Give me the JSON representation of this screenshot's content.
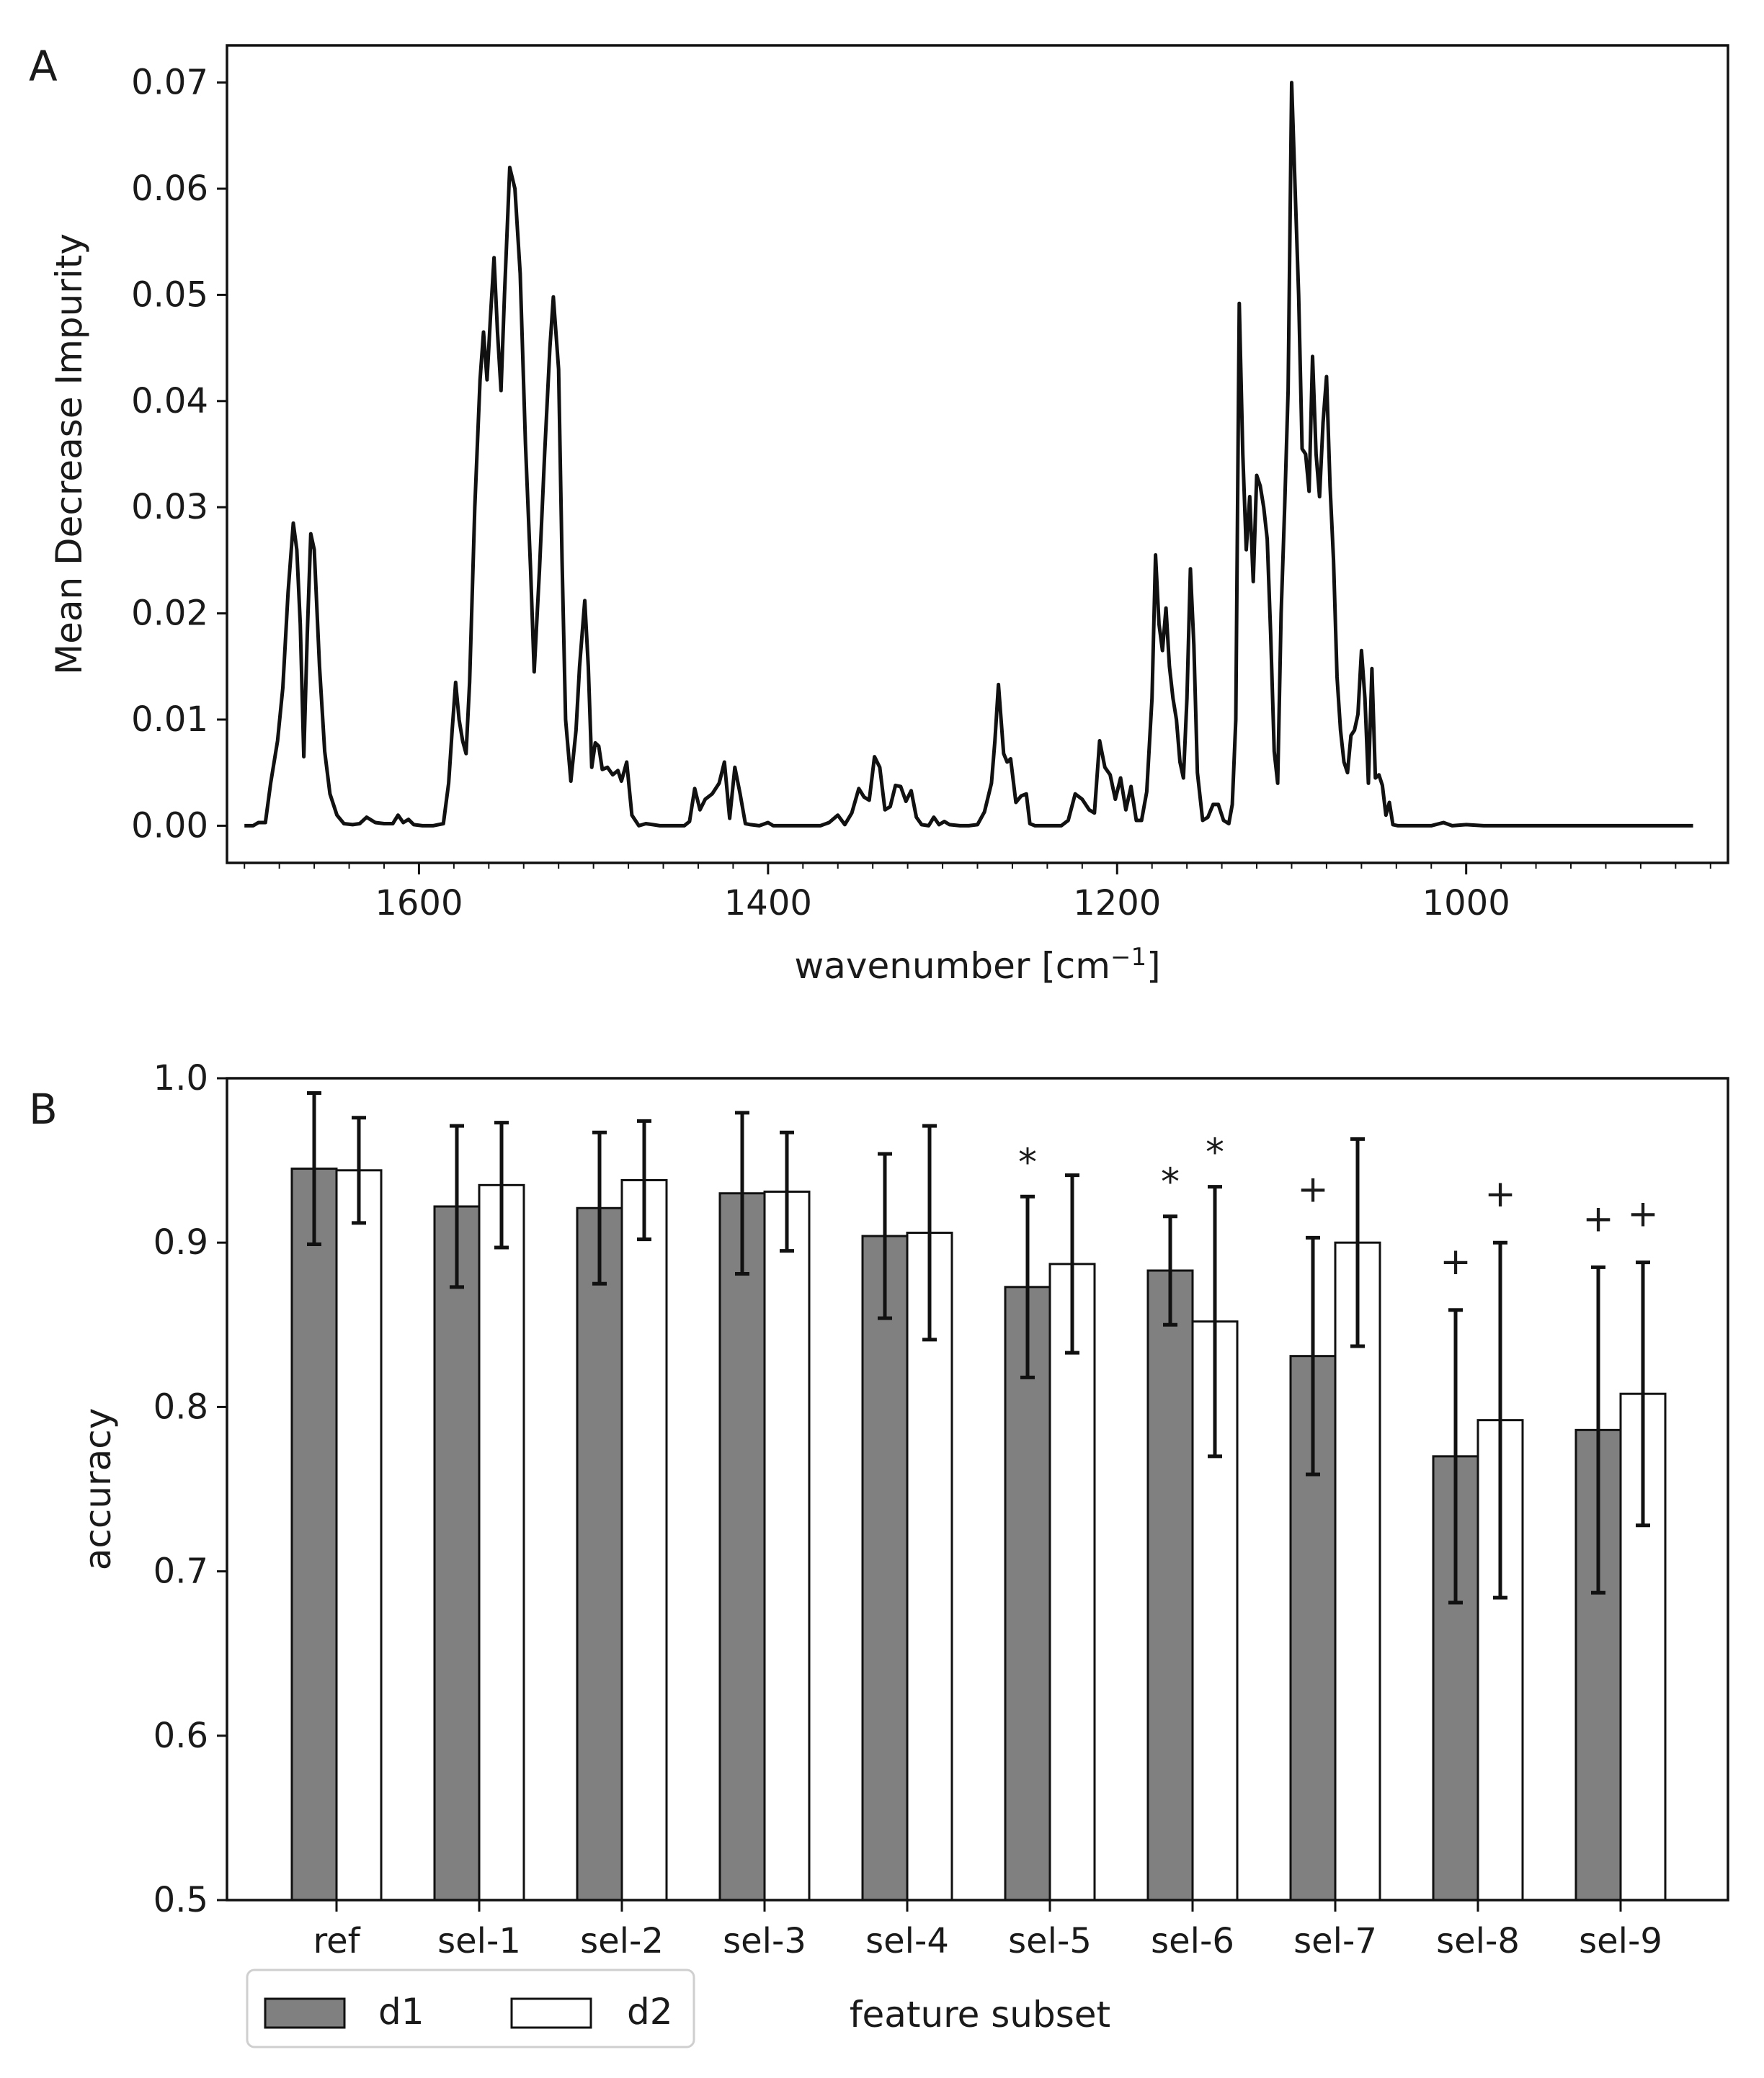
{
  "chart_data": [
    {
      "type": "line",
      "panel_label": "A",
      "title": "",
      "xlabel": "wavenumber [cm",
      "xlabel_superscript": "−1",
      "xlabel_suffix": "]",
      "ylabel": "Mean Decrease Impurity",
      "xlim": [
        1710,
        850
      ],
      "ylim": [
        -0.0035,
        0.0735
      ],
      "x_inverted": true,
      "x_ticks": [
        1600,
        1400,
        1200,
        1000
      ],
      "x_tick_labels": [
        "1600",
        "1400",
        "1200",
        "1000"
      ],
      "y_ticks": [
        0.0,
        0.01,
        0.02,
        0.03,
        0.04,
        0.05,
        0.06,
        0.07
      ],
      "y_tick_labels": [
        "0.00",
        "0.01",
        "0.02",
        "0.03",
        "0.04",
        "0.05",
        "0.06",
        "0.07"
      ],
      "series": [
        {
          "name": "importance",
          "color": "#111111",
          "points": [
            [
              1700,
              0.0
            ],
            [
              1695,
              0.0
            ],
            [
              1692,
              0.0003
            ],
            [
              1688,
              0.0003
            ],
            [
              1685,
              0.004
            ],
            [
              1681,
              0.008
            ],
            [
              1678,
              0.013
            ],
            [
              1675,
              0.022
            ],
            [
              1672,
              0.0285
            ],
            [
              1670,
              0.026
            ],
            [
              1668,
              0.019
            ],
            [
              1666,
              0.0065
            ],
            [
              1664,
              0.018
            ],
            [
              1662,
              0.0275
            ],
            [
              1660,
              0.026
            ],
            [
              1657,
              0.015
            ],
            [
              1654,
              0.007
            ],
            [
              1651,
              0.003
            ],
            [
              1647,
              0.001
            ],
            [
              1643,
              0.0002
            ],
            [
              1638,
              0.0001
            ],
            [
              1634,
              0.0002
            ],
            [
              1630,
              0.0008
            ],
            [
              1625,
              0.0003
            ],
            [
              1620,
              0.0002
            ],
            [
              1615,
              0.0002
            ],
            [
              1612,
              0.001
            ],
            [
              1609,
              0.0003
            ],
            [
              1606,
              0.0006
            ],
            [
              1603,
              0.0001
            ],
            [
              1598,
              0.0
            ],
            [
              1592,
              0.0
            ],
            [
              1586,
              0.0002
            ],
            [
              1583,
              0.004
            ],
            [
              1581,
              0.009
            ],
            [
              1579,
              0.0135
            ],
            [
              1577,
              0.01
            ],
            [
              1575,
              0.008
            ],
            [
              1573,
              0.0068
            ],
            [
              1571,
              0.0135
            ],
            [
              1568,
              0.03
            ],
            [
              1565,
              0.042
            ],
            [
              1563,
              0.0465
            ],
            [
              1561,
              0.042
            ],
            [
              1559,
              0.048
            ],
            [
              1557,
              0.0535
            ],
            [
              1555,
              0.0465
            ],
            [
              1553,
              0.041
            ],
            [
              1551,
              0.05
            ],
            [
              1548,
              0.062
            ],
            [
              1545,
              0.06
            ],
            [
              1542,
              0.052
            ],
            [
              1539,
              0.036
            ],
            [
              1536,
              0.024
            ],
            [
              1534,
              0.0145
            ],
            [
              1531,
              0.024
            ],
            [
              1528,
              0.035
            ],
            [
              1525,
              0.045
            ],
            [
              1523,
              0.0498
            ],
            [
              1520,
              0.043
            ],
            [
              1518,
              0.025
            ],
            [
              1516,
              0.01
            ],
            [
              1513,
              0.0042
            ],
            [
              1510,
              0.009
            ],
            [
              1508,
              0.015
            ],
            [
              1505,
              0.0212
            ],
            [
              1503,
              0.015
            ],
            [
              1501,
              0.0055
            ],
            [
              1499,
              0.0078
            ],
            [
              1497,
              0.0075
            ],
            [
              1495,
              0.0053
            ],
            [
              1492,
              0.0055
            ],
            [
              1489,
              0.0048
            ],
            [
              1486,
              0.0052
            ],
            [
              1484,
              0.0042
            ],
            [
              1481,
              0.006
            ],
            [
              1478,
              0.001
            ],
            [
              1474,
              0.0
            ],
            [
              1470,
              0.0002
            ],
            [
              1466,
              0.0001
            ],
            [
              1462,
              0.0
            ],
            [
              1455,
              0.0
            ],
            [
              1448,
              0.0
            ],
            [
              1445,
              0.0004
            ],
            [
              1442,
              0.0035
            ],
            [
              1439,
              0.0015
            ],
            [
              1436,
              0.0025
            ],
            [
              1432,
              0.003
            ],
            [
              1428,
              0.004
            ],
            [
              1425,
              0.006
            ],
            [
              1422,
              0.0007
            ],
            [
              1419,
              0.0055
            ],
            [
              1416,
              0.003
            ],
            [
              1413,
              0.0002
            ],
            [
              1410,
              0.0001
            ],
            [
              1405,
              0.0
            ],
            [
              1400,
              0.0003
            ],
            [
              1397,
              0.0
            ],
            [
              1390,
              0.0
            ],
            [
              1380,
              0.0
            ],
            [
              1370,
              0.0
            ],
            [
              1365,
              0.0003
            ],
            [
              1360,
              0.001
            ],
            [
              1356,
              0.0001
            ],
            [
              1352,
              0.0012
            ],
            [
              1348,
              0.0035
            ],
            [
              1345,
              0.0027
            ],
            [
              1342,
              0.0024
            ],
            [
              1339,
              0.0065
            ],
            [
              1336,
              0.0055
            ],
            [
              1333,
              0.0015
            ],
            [
              1330,
              0.0018
            ],
            [
              1327,
              0.0038
            ],
            [
              1324,
              0.0037
            ],
            [
              1321,
              0.0023
            ],
            [
              1318,
              0.0033
            ],
            [
              1315,
              0.0008
            ],
            [
              1312,
              0.0001
            ],
            [
              1308,
              0.0
            ],
            [
              1305,
              0.0008
            ],
            [
              1302,
              0.0001
            ],
            [
              1299,
              0.0004
            ],
            [
              1296,
              0.0001
            ],
            [
              1290,
              0.0
            ],
            [
              1285,
              0.0
            ],
            [
              1280,
              0.0001
            ],
            [
              1276,
              0.0013
            ],
            [
              1272,
              0.004
            ],
            [
              1270,
              0.008
            ],
            [
              1268,
              0.0133
            ],
            [
              1265,
              0.0068
            ],
            [
              1263,
              0.006
            ],
            [
              1261,
              0.0063
            ],
            [
              1258,
              0.0022
            ],
            [
              1255,
              0.0028
            ],
            [
              1252,
              0.003
            ],
            [
              1250,
              0.0002
            ],
            [
              1247,
              0.0
            ],
            [
              1240,
              0.0
            ],
            [
              1232,
              0.0
            ],
            [
              1228,
              0.0005
            ],
            [
              1224,
              0.003
            ],
            [
              1220,
              0.0025
            ],
            [
              1216,
              0.0015
            ],
            [
              1213,
              0.0012
            ],
            [
              1210,
              0.008
            ],
            [
              1207,
              0.0055
            ],
            [
              1204,
              0.0048
            ],
            [
              1201,
              0.0025
            ],
            [
              1198,
              0.0045
            ],
            [
              1195,
              0.0015
            ],
            [
              1192,
              0.0037
            ],
            [
              1189,
              0.0005
            ],
            [
              1186,
              0.0005
            ],
            [
              1183,
              0.0032
            ],
            [
              1180,
              0.012
            ],
            [
              1178,
              0.0255
            ],
            [
              1176,
              0.019
            ],
            [
              1174,
              0.0165
            ],
            [
              1172,
              0.0205
            ],
            [
              1170,
              0.015
            ],
            [
              1168,
              0.012
            ],
            [
              1166,
              0.01
            ],
            [
              1164,
              0.006
            ],
            [
              1162,
              0.0045
            ],
            [
              1160,
              0.012
            ],
            [
              1158,
              0.0242
            ],
            [
              1156,
              0.017
            ],
            [
              1154,
              0.005
            ],
            [
              1151,
              0.0005
            ],
            [
              1148,
              0.0008
            ],
            [
              1145,
              0.002
            ],
            [
              1142,
              0.002
            ],
            [
              1139,
              0.0005
            ],
            [
              1136,
              0.0002
            ],
            [
              1134,
              0.002
            ],
            [
              1132,
              0.01
            ],
            [
              1130,
              0.0492
            ],
            [
              1128,
              0.035
            ],
            [
              1126,
              0.026
            ],
            [
              1124,
              0.031
            ],
            [
              1122,
              0.023
            ],
            [
              1120,
              0.033
            ],
            [
              1118,
              0.032
            ],
            [
              1116,
              0.03
            ],
            [
              1114,
              0.027
            ],
            [
              1112,
              0.018
            ],
            [
              1110,
              0.007
            ],
            [
              1108,
              0.004
            ],
            [
              1106,
              0.02
            ],
            [
              1104,
              0.03
            ],
            [
              1102,
              0.041
            ],
            [
              1100,
              0.07
            ],
            [
              1098,
              0.06
            ],
            [
              1096,
              0.05
            ],
            [
              1094,
              0.0355
            ],
            [
              1092,
              0.035
            ],
            [
              1090,
              0.0315
            ],
            [
              1088,
              0.0442
            ],
            [
              1086,
              0.035
            ],
            [
              1084,
              0.031
            ],
            [
              1082,
              0.038
            ],
            [
              1080,
              0.0423
            ],
            [
              1078,
              0.032
            ],
            [
              1076,
              0.025
            ],
            [
              1074,
              0.014
            ],
            [
              1072,
              0.009
            ],
            [
              1070,
              0.006
            ],
            [
              1068,
              0.005
            ],
            [
              1066,
              0.0085
            ],
            [
              1064,
              0.009
            ],
            [
              1062,
              0.0105
            ],
            [
              1060,
              0.0165
            ],
            [
              1058,
              0.012
            ],
            [
              1056,
              0.004
            ],
            [
              1054,
              0.0148
            ],
            [
              1052,
              0.0045
            ],
            [
              1050,
              0.0048
            ],
            [
              1048,
              0.0038
            ],
            [
              1046,
              0.001
            ],
            [
              1044,
              0.0022
            ],
            [
              1042,
              0.0001
            ],
            [
              1039,
              0.0
            ],
            [
              1030,
              0.0
            ],
            [
              1020,
              0.0
            ],
            [
              1013,
              0.0003
            ],
            [
              1008,
              0.0
            ],
            [
              1000,
              0.0001
            ],
            [
              990,
              0.0
            ],
            [
              975,
              0.0
            ],
            [
              960,
              0.0
            ],
            [
              940,
              0.0
            ],
            [
              920,
              0.0
            ],
            [
              900,
              0.0
            ],
            [
              870,
              0.0
            ]
          ]
        }
      ]
    },
    {
      "type": "bar",
      "panel_label": "B",
      "title": "",
      "xlabel": "feature subset",
      "ylabel": "accuracy",
      "ylim": [
        0.5,
        1.0
      ],
      "y_ticks": [
        0.5,
        0.6,
        0.7,
        0.8,
        0.9,
        1.0
      ],
      "y_tick_labels": [
        "0.5",
        "0.6",
        "0.7",
        "0.8",
        "0.9",
        "1.0"
      ],
      "categories": [
        "ref",
        "sel-1",
        "sel-2",
        "sel-3",
        "sel-4",
        "sel-5",
        "sel-6",
        "sel-7",
        "sel-8",
        "sel-9"
      ],
      "series": [
        {
          "name": "d1",
          "fill": "#808080",
          "values": [
            0.945,
            0.922,
            0.921,
            0.93,
            0.904,
            0.873,
            0.883,
            0.831,
            0.77,
            0.786
          ],
          "errors": [
            0.046,
            0.049,
            0.046,
            0.049,
            0.05,
            0.055,
            0.033,
            0.072,
            0.089,
            0.099
          ],
          "markers": [
            "",
            "",
            "",
            "",
            "",
            "*",
            "*",
            "+",
            "+",
            "+"
          ]
        },
        {
          "name": "d2",
          "fill": "#ffffff",
          "values": [
            0.944,
            0.935,
            0.938,
            0.931,
            0.906,
            0.887,
            0.852,
            0.9,
            0.792,
            0.808
          ],
          "errors": [
            0.032,
            0.038,
            0.036,
            0.036,
            0.065,
            0.054,
            0.082,
            0.063,
            0.108,
            0.08
          ],
          "markers": [
            "",
            "",
            "",
            "",
            "",
            "",
            "*",
            "",
            "+",
            "+"
          ]
        }
      ],
      "legend": {
        "entries": [
          "d1",
          "d2"
        ],
        "placement": "bottom-left"
      }
    }
  ]
}
